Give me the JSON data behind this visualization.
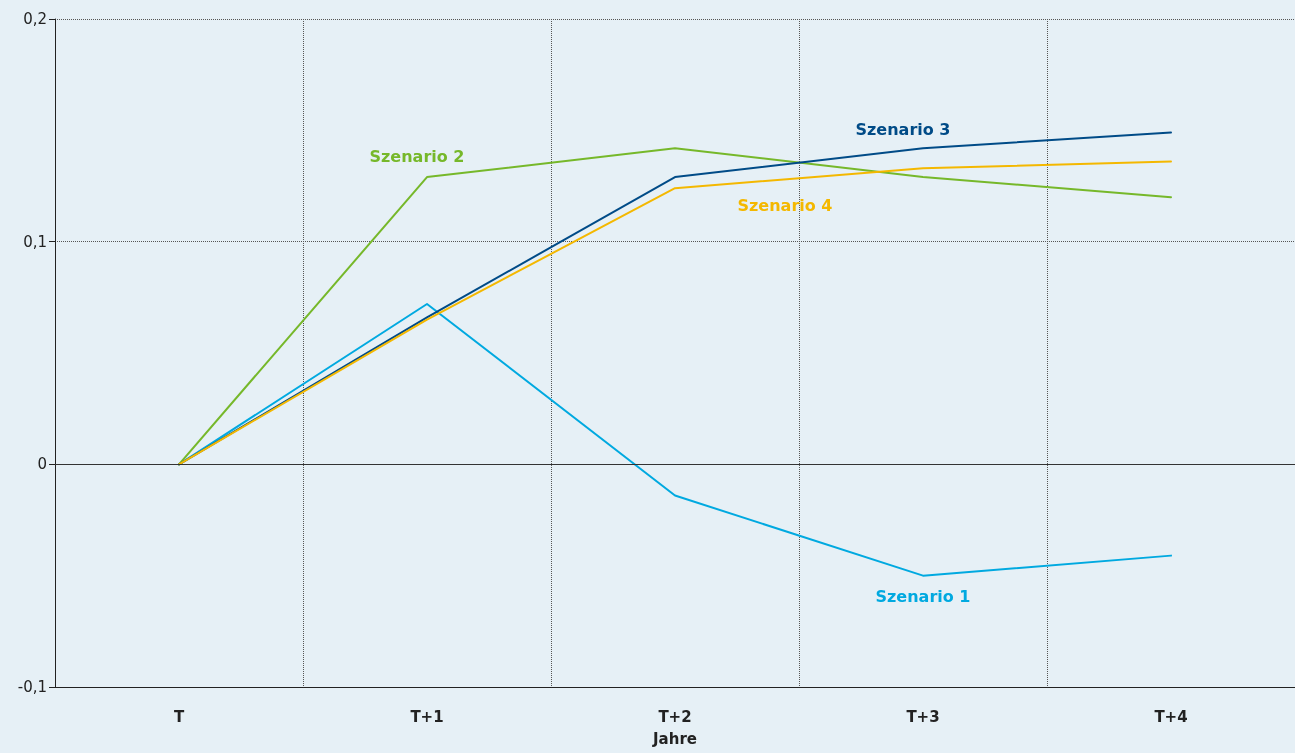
{
  "chart_data": {
    "type": "line",
    "xlabel": "Jahre",
    "categories": [
      "T",
      "T+1",
      "T+2",
      "T+3",
      "T+4"
    ],
    "series": [
      {
        "name": "Szenario 1",
        "color": "#00a9e0",
        "values": [
          0,
          0.072,
          -0.014,
          -0.05,
          -0.041
        ]
      },
      {
        "name": "Szenario 2",
        "color": "#76b82a",
        "values": [
          0,
          0.129,
          0.142,
          0.129,
          0.12
        ]
      },
      {
        "name": "Szenario 3",
        "color": "#004b87",
        "values": [
          0,
          0.066,
          0.129,
          0.142,
          0.149
        ]
      },
      {
        "name": "Szenario 4",
        "color": "#f4b800",
        "values": [
          0,
          0.065,
          0.124,
          0.133,
          0.136
        ]
      }
    ],
    "ylim": [
      -0.1,
      0.2
    ],
    "yticks": [
      {
        "value": -0.1,
        "label": "-0,1"
      },
      0,
      {
        "value": 0.1,
        "label": "0,1"
      },
      {
        "value": 0.2,
        "label": "0,2"
      }
    ],
    "ref_lines": [
      {
        "axis": "y",
        "value": 0,
        "color": "#333333",
        "line_style": "solid"
      }
    ],
    "grid": true,
    "marker": "none",
    "line_style": "solid"
  }
}
